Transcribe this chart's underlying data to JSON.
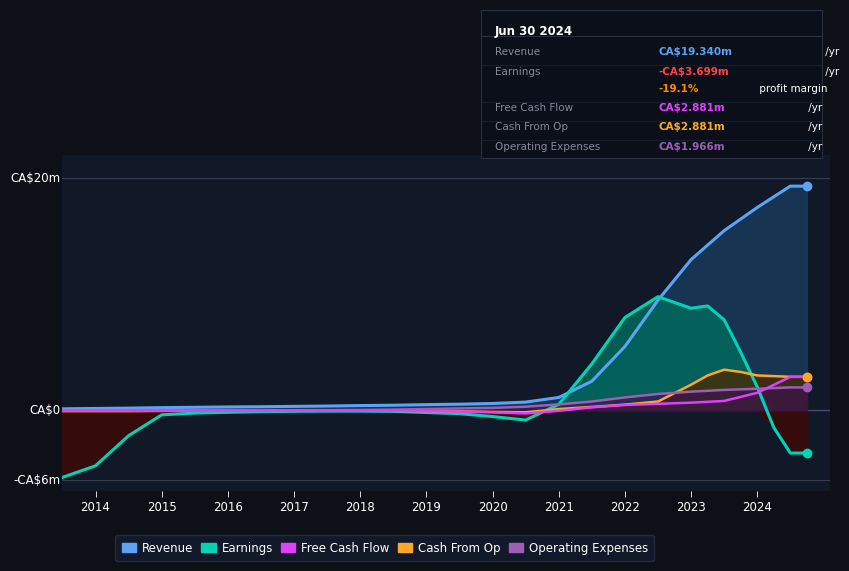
{
  "bg_color": "#0d1117",
  "plot_bg_color": "#111827",
  "ylabel_top": "CA$20m",
  "ylabel_mid": "CA$0",
  "ylabel_bot": "-CA$6m",
  "ylim": [
    -7,
    22
  ],
  "xlim": [
    2013.5,
    2025.1
  ],
  "xticks": [
    2014,
    2015,
    2016,
    2017,
    2018,
    2019,
    2020,
    2021,
    2022,
    2023,
    2024
  ],
  "legend_items": [
    {
      "label": "Revenue",
      "color": "#5ba3f5",
      "marker_color": "#5ba3f5"
    },
    {
      "label": "Earnings",
      "color": "#00d4b4",
      "marker_color": "#00d4b4"
    },
    {
      "label": "Free Cash Flow",
      "color": "#e040fb",
      "marker_color": "#e040fb"
    },
    {
      "label": "Cash From Op",
      "color": "#ffa726",
      "marker_color": "#ffa726"
    },
    {
      "label": "Operating Expenses",
      "color": "#9c5fb5",
      "marker_color": "#9c5fb5"
    }
  ],
  "revenue": {
    "color": "#5ba3f5",
    "fill_color": "#1a3a5c",
    "x": [
      2013.5,
      2014.0,
      2014.5,
      2015.0,
      2015.5,
      2016.0,
      2016.5,
      2017.0,
      2017.5,
      2018.0,
      2018.5,
      2019.0,
      2019.5,
      2020.0,
      2020.5,
      2021.0,
      2021.5,
      2022.0,
      2022.5,
      2023.0,
      2023.5,
      2024.0,
      2024.5,
      2024.75
    ],
    "y": [
      0.12,
      0.15,
      0.18,
      0.22,
      0.25,
      0.28,
      0.3,
      0.33,
      0.36,
      0.4,
      0.43,
      0.48,
      0.52,
      0.58,
      0.7,
      1.1,
      2.5,
      5.5,
      9.5,
      13.0,
      15.5,
      17.5,
      19.34,
      19.34
    ]
  },
  "earnings": {
    "color": "#00d4b4",
    "fill_pos_color": "#00695c",
    "fill_neg_color": "#3b0a0a",
    "x": [
      2013.5,
      2014.0,
      2014.5,
      2015.0,
      2015.5,
      2016.0,
      2016.5,
      2017.0,
      2017.5,
      2018.0,
      2018.5,
      2019.0,
      2019.5,
      2020.0,
      2020.5,
      2021.0,
      2021.5,
      2022.0,
      2022.5,
      2022.75,
      2023.0,
      2023.25,
      2023.5,
      2023.75,
      2024.0,
      2024.25,
      2024.5,
      2024.75
    ],
    "y": [
      -5.8,
      -4.8,
      -2.2,
      -0.4,
      -0.25,
      -0.18,
      -0.12,
      -0.1,
      -0.08,
      -0.08,
      -0.1,
      -0.2,
      -0.3,
      -0.55,
      -0.85,
      0.5,
      4.0,
      8.0,
      9.8,
      9.3,
      8.8,
      9.0,
      7.8,
      5.0,
      2.0,
      -1.5,
      -3.699,
      -3.699
    ]
  },
  "free_cash_flow": {
    "color": "#e040fb",
    "x": [
      2013.5,
      2014.0,
      2014.5,
      2015.0,
      2015.5,
      2016.0,
      2016.5,
      2017.0,
      2017.5,
      2018.0,
      2018.5,
      2019.0,
      2019.5,
      2020.0,
      2020.5,
      2021.0,
      2021.5,
      2022.0,
      2022.5,
      2023.0,
      2023.5,
      2024.0,
      2024.5,
      2024.75
    ],
    "y": [
      -0.05,
      -0.05,
      -0.05,
      -0.05,
      -0.05,
      -0.05,
      -0.05,
      -0.05,
      -0.05,
      -0.05,
      -0.05,
      -0.08,
      -0.12,
      -0.18,
      -0.28,
      -0.05,
      0.25,
      0.45,
      0.55,
      0.65,
      0.8,
      1.5,
      2.881,
      2.881
    ]
  },
  "cash_from_op": {
    "color": "#ffa726",
    "fill_color": "#4a2800",
    "x": [
      2013.5,
      2014.0,
      2014.5,
      2015.0,
      2015.5,
      2016.0,
      2016.5,
      2017.0,
      2017.5,
      2018.0,
      2018.5,
      2019.0,
      2019.5,
      2020.0,
      2020.5,
      2021.0,
      2021.5,
      2022.0,
      2022.5,
      2023.0,
      2023.25,
      2023.5,
      2023.75,
      2024.0,
      2024.5,
      2024.75
    ],
    "y": [
      -0.08,
      -0.08,
      -0.08,
      -0.06,
      -0.05,
      -0.04,
      -0.04,
      -0.04,
      -0.04,
      -0.04,
      -0.06,
      -0.08,
      -0.1,
      -0.15,
      -0.18,
      0.1,
      0.28,
      0.48,
      0.75,
      2.2,
      3.0,
      3.5,
      3.3,
      3.0,
      2.881,
      2.881
    ]
  },
  "operating_expenses": {
    "color": "#9c5fb5",
    "fill_color": "#3a1050",
    "x": [
      2013.5,
      2014.0,
      2014.5,
      2015.0,
      2015.5,
      2016.0,
      2016.5,
      2017.0,
      2017.5,
      2018.0,
      2018.5,
      2019.0,
      2019.5,
      2020.0,
      2020.5,
      2021.0,
      2021.5,
      2022.0,
      2022.5,
      2023.0,
      2023.5,
      2024.0,
      2024.5,
      2024.75
    ],
    "y": [
      0.0,
      0.0,
      0.0,
      0.0,
      0.0,
      0.0,
      0.0,
      0.0,
      0.0,
      0.02,
      0.05,
      0.1,
      0.15,
      0.2,
      0.3,
      0.5,
      0.75,
      1.1,
      1.4,
      1.6,
      1.75,
      1.85,
      1.966,
      1.966
    ]
  },
  "info_box": {
    "title": "Jun 30 2024",
    "title_color": "#ffffff",
    "bg_color": "#0a0f1a",
    "border_color": "#2a3040",
    "rows": [
      {
        "label": "Revenue",
        "label_color": "#888899",
        "value": "CA$19.340m",
        "unit": " /yr",
        "value_color": "#5ba3f5"
      },
      {
        "label": "Earnings",
        "label_color": "#888899",
        "value": "-CA$3.699m",
        "unit": " /yr",
        "value_color": "#ff4444"
      },
      {
        "label": "",
        "label_color": "#888899",
        "value": "-19.1%",
        "unit": " profit margin",
        "value_color": "#ff8800"
      },
      {
        "label": "Free Cash Flow",
        "label_color": "#888899",
        "value": "CA$2.881m",
        "unit": " /yr",
        "value_color": "#e040fb"
      },
      {
        "label": "Cash From Op",
        "label_color": "#888899",
        "value": "CA$2.881m",
        "unit": " /yr",
        "value_color": "#ffa726"
      },
      {
        "label": "Operating Expenses",
        "label_color": "#888899",
        "value": "CA$1.966m",
        "unit": " /yr",
        "value_color": "#9c5fb5"
      }
    ]
  }
}
